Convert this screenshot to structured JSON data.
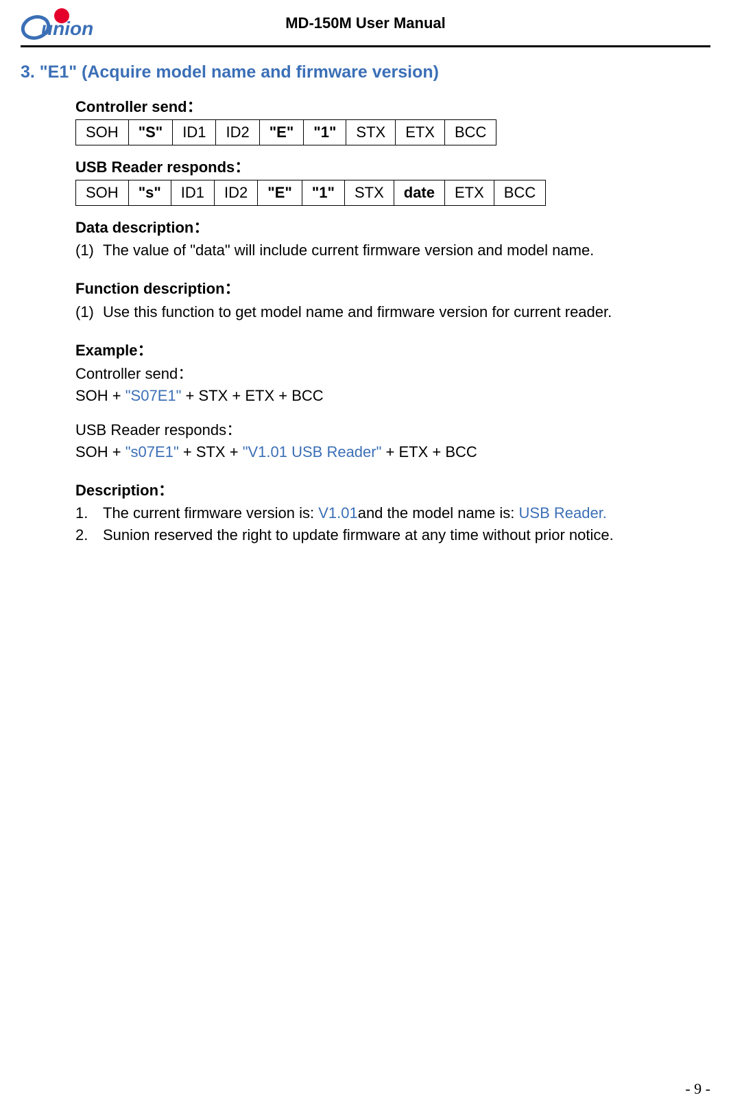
{
  "header": {
    "title": "MD-150M User Manual"
  },
  "section_title": "3. \"E1\" (Acquire model name and firmware version)",
  "controller_send_label": "Controller send：",
  "controller_send_cells": [
    {
      "t": "SOH",
      "b": false
    },
    {
      "t": "\"S\"",
      "b": true
    },
    {
      "t": "ID1",
      "b": false
    },
    {
      "t": "ID2",
      "b": false
    },
    {
      "t": "\"E\"",
      "b": true
    },
    {
      "t": "\"1\"",
      "b": true
    },
    {
      "t": "STX",
      "b": false
    },
    {
      "t": "ETX",
      "b": false
    },
    {
      "t": "BCC",
      "b": false
    }
  ],
  "usb_responds_label": "USB Reader responds：",
  "usb_responds_cells": [
    {
      "t": "SOH",
      "b": false
    },
    {
      "t": "\"s\"",
      "b": true
    },
    {
      "t": "ID1",
      "b": false
    },
    {
      "t": "ID2",
      "b": false
    },
    {
      "t": "\"E\"",
      "b": true
    },
    {
      "t": "\"1\"",
      "b": true
    },
    {
      "t": "STX",
      "b": false
    },
    {
      "t": "date",
      "b": true
    },
    {
      "t": "ETX",
      "b": false
    },
    {
      "t": "BCC",
      "b": false
    }
  ],
  "data_desc_label": "Data description：",
  "data_desc_num": "(1)",
  "data_desc_text": "The value of \"data\" will include current firmware version and model name.",
  "func_desc_label": "Function description：",
  "func_desc_num": "(1)",
  "func_desc_text": "Use this function to get model name and firmware version for current reader.",
  "example_label": "Example：",
  "example_controller_send": "Controller send：",
  "ex_send_pre": "SOH + ",
  "ex_send_blue": "\"S07E1\"",
  "ex_send_post": " + STX + ETX + BCC",
  "example_usb_responds": "USB Reader responds：",
  "ex_resp_pre": "SOH + ",
  "ex_resp_blue1": "\"s07E1\"",
  "ex_resp_mid": " + STX + ",
  "ex_resp_blue2": "\"V1.01 USB Reader\"",
  "ex_resp_post": " + ETX + BCC",
  "desc_label": "Description：",
  "desc1_num": "1.",
  "desc1_a": "The current firmware version is: ",
  "desc1_blue1": "V1.01",
  "desc1_b": "and the model name is: ",
  "desc1_blue2": "USB Reader.",
  "desc2_num": "2.",
  "desc2_text": "Sunion reserved the right to update firmware at any time without prior notice.",
  "page_number": "- 9 -",
  "colors": {
    "accent_blue": "#3b6fb6",
    "logo_red": "#e4002b",
    "text_black": "#000000",
    "background": "#ffffff"
  }
}
